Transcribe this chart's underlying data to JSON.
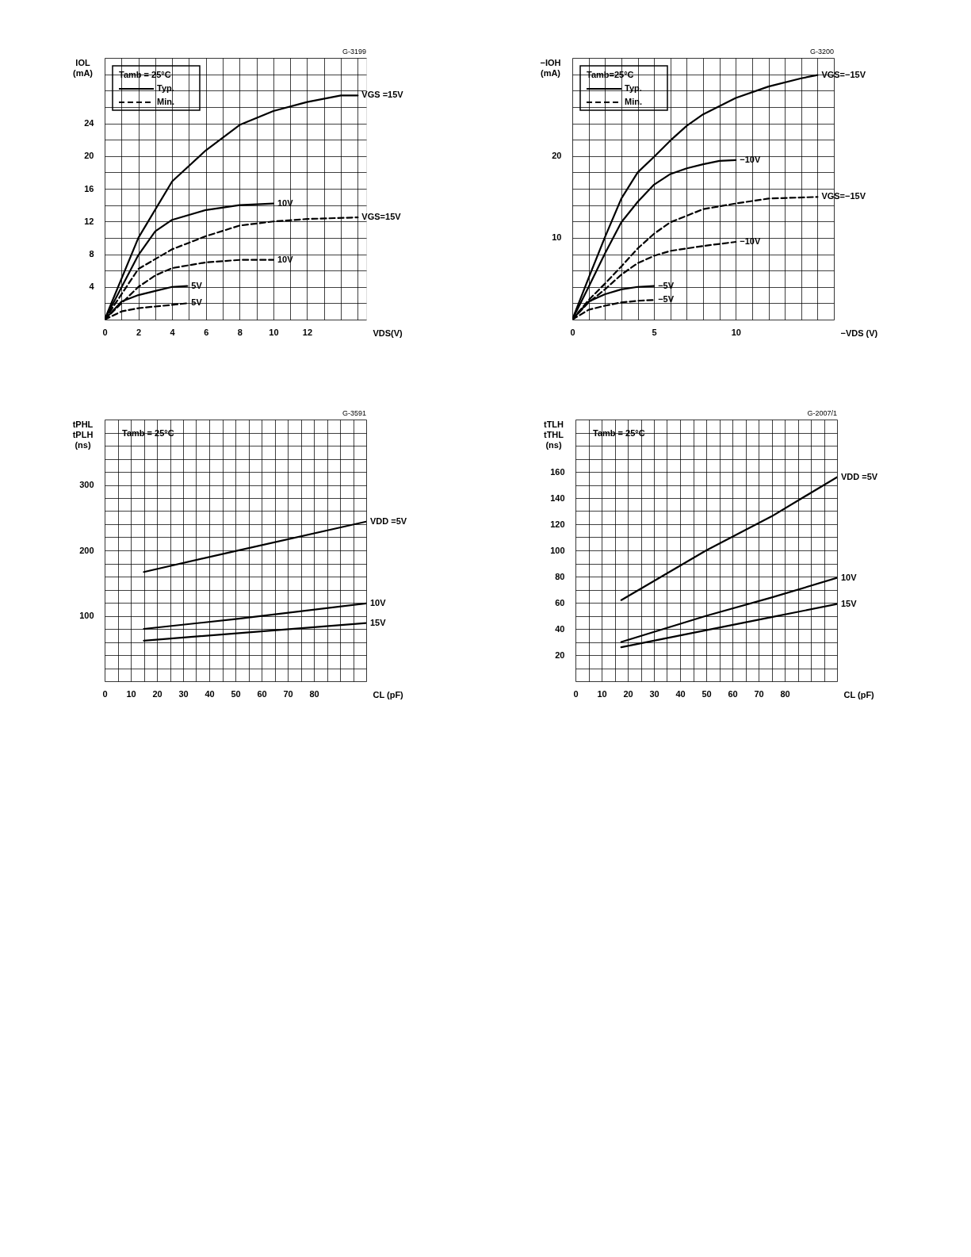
{
  "chart_data": [
    {
      "type": "line",
      "xlabel": "VDS(V)",
      "ylabel": "IOL\n(mA)",
      "legend_title": "Tamb = 25°C",
      "grid": true,
      "xlim": [
        0,
        15.5
      ],
      "ylim": [
        0,
        32
      ],
      "xticks": [
        0,
        {
          "value": 1,
          "label": null
        },
        2,
        {
          "value": 3,
          "label": null
        },
        4,
        {
          "value": 5,
          "label": null
        },
        6,
        {
          "value": 7,
          "label": null
        },
        8,
        {
          "value": 9,
          "label": null
        },
        10,
        {
          "value": 11,
          "label": null
        },
        12,
        {
          "value": 13,
          "label": null
        },
        {
          "value": 14,
          "label": null
        },
        {
          "value": 15,
          "label": null
        }
      ],
      "yticks": [
        {
          "value": 0,
          "label": null
        },
        {
          "value": 2,
          "label": null
        },
        4,
        {
          "value": 6,
          "label": null
        },
        8,
        {
          "value": 10,
          "label": null
        },
        12,
        {
          "value": 14,
          "label": null
        },
        16,
        {
          "value": 18,
          "label": null
        },
        20,
        {
          "value": 22,
          "label": null
        },
        24,
        {
          "value": 26,
          "label": null
        },
        {
          "value": 28,
          "label": null
        },
        {
          "value": 30,
          "label": null
        },
        {
          "value": 32,
          "label": null
        }
      ],
      "series": [
        {
          "name": "VGS =15V",
          "color": "#000000",
          "line_style": "solid",
          "x": [
            0,
            2,
            4,
            6,
            8,
            10,
            12,
            14,
            15
          ],
          "values": [
            0,
            10,
            16.9,
            20.7,
            23.8,
            25.5,
            26.6,
            27.4,
            27.4
          ]
        },
        {
          "name": "10V",
          "color": "#000000",
          "line_style": "solid",
          "x": [
            0,
            2,
            3,
            4,
            6,
            8,
            10
          ],
          "values": [
            0,
            7.9,
            10.8,
            12.2,
            13.4,
            14.0,
            14.2
          ]
        },
        {
          "name": "5V",
          "color": "#000000",
          "line_style": "solid",
          "x": [
            0,
            1,
            2,
            3,
            4,
            4.9
          ],
          "values": [
            0,
            2.2,
            3.0,
            3.5,
            4.0,
            4.1
          ]
        },
        {
          "name": "VGS=15V",
          "color": "#000000",
          "line_style": "dashed",
          "x": [
            0,
            2,
            4,
            6,
            8,
            10,
            12,
            15
          ],
          "values": [
            0,
            6.2,
            8.6,
            10.2,
            11.5,
            12.0,
            12.3,
            12.5
          ]
        },
        {
          "name": "10V",
          "color": "#000000",
          "line_style": "dashed",
          "x": [
            0,
            2,
            3,
            4,
            6,
            8,
            10
          ],
          "values": [
            0,
            4.0,
            5.4,
            6.3,
            7.0,
            7.3,
            7.3
          ]
        },
        {
          "name": "5V",
          "color": "#000000",
          "line_style": "dashed",
          "x": [
            0,
            1,
            2,
            3,
            4,
            4.9
          ],
          "values": [
            0,
            1.0,
            1.4,
            1.6,
            1.8,
            2.0
          ]
        }
      ],
      "annotations": [
        "G-3199",
        "Typ.",
        "Min."
      ]
    },
    {
      "type": "line",
      "xlabel": "−VDS (V)",
      "ylabel": "−IOH\n(mA)",
      "legend_title": "Tamb=25°C",
      "grid": true,
      "xlim": [
        0,
        16
      ],
      "ylim": [
        0,
        32
      ],
      "xticks": [
        0,
        {
          "value": 1,
          "label": null
        },
        {
          "value": 2,
          "label": null
        },
        {
          "value": 3,
          "label": null
        },
        {
          "value": 4,
          "label": null
        },
        5,
        {
          "value": 6,
          "label": null
        },
        {
          "value": 7,
          "label": null
        },
        {
          "value": 8,
          "label": null
        },
        {
          "value": 9,
          "label": null
        },
        10,
        {
          "value": 11,
          "label": null
        },
        {
          "value": 12,
          "label": null
        },
        {
          "value": 13,
          "label": null
        },
        {
          "value": 14,
          "label": null
        },
        {
          "value": 15,
          "label": null
        },
        {
          "value": 16,
          "label": null
        }
      ],
      "yticks": [
        {
          "value": 0,
          "label": null
        },
        {
          "value": 2,
          "label": null
        },
        {
          "value": 4,
          "label": null
        },
        {
          "value": 6,
          "label": null
        },
        {
          "value": 8,
          "label": null
        },
        10,
        {
          "value": 12,
          "label": null
        },
        {
          "value": 14,
          "label": null
        },
        {
          "value": 16,
          "label": null
        },
        {
          "value": 18,
          "label": null
        },
        20,
        {
          "value": 22,
          "label": null
        },
        {
          "value": 24,
          "label": null
        },
        {
          "value": 26,
          "label": null
        },
        {
          "value": 28,
          "label": null
        },
        {
          "value": 30,
          "label": null
        },
        {
          "value": 32,
          "label": null
        }
      ],
      "series": [
        {
          "name": "VGS=−15V",
          "color": "#000000",
          "line_style": "solid",
          "x": [
            0,
            1,
            2,
            3,
            4,
            5,
            6,
            7,
            8,
            10,
            12,
            14,
            15
          ],
          "values": [
            0,
            5.1,
            10.1,
            14.8,
            18.0,
            19.9,
            21.9,
            23.7,
            25.1,
            27.1,
            28.5,
            29.5,
            29.9
          ]
        },
        {
          "name": "−10V",
          "color": "#000000",
          "line_style": "solid",
          "x": [
            0,
            1,
            2,
            3,
            4,
            5,
            6,
            7,
            8,
            9,
            10
          ],
          "values": [
            0,
            4.0,
            8.1,
            11.9,
            14.4,
            16.5,
            17.8,
            18.5,
            19.0,
            19.4,
            19.5
          ]
        },
        {
          "name": "−5V",
          "color": "#000000",
          "line_style": "solid",
          "x": [
            0,
            1,
            2,
            3,
            4,
            5
          ],
          "values": [
            0,
            2.2,
            3.1,
            3.7,
            4.0,
            4.1
          ]
        },
        {
          "name": "VGS=−15V",
          "color": "#000000",
          "line_style": "dashed",
          "x": [
            0,
            1,
            2,
            3,
            4,
            5,
            6,
            8,
            10,
            12,
            15
          ],
          "values": [
            0,
            2.4,
            4.4,
            6.5,
            8.7,
            10.5,
            11.9,
            13.5,
            14.2,
            14.8,
            15.0
          ]
        },
        {
          "name": "−10V",
          "color": "#000000",
          "line_style": "dashed",
          "x": [
            0,
            1,
            2,
            3,
            4,
            5,
            6,
            8,
            10
          ],
          "values": [
            0,
            2.1,
            3.7,
            5.5,
            6.9,
            7.8,
            8.4,
            9.0,
            9.5
          ]
        },
        {
          "name": "−5V",
          "color": "#000000",
          "line_style": "dashed",
          "x": [
            0,
            1,
            2,
            3,
            4,
            5
          ],
          "values": [
            0,
            1.2,
            1.7,
            2.1,
            2.3,
            2.4
          ]
        }
      ],
      "annotations": [
        "G-3200",
        "Typ.",
        "Min."
      ]
    },
    {
      "type": "line",
      "xlabel": "CL (pF)",
      "ylabel": "tPHL\ntPLH\n(ns)",
      "grid": true,
      "xlim": [
        0,
        100
      ],
      "ylim": [
        0,
        400
      ],
      "xticks": [
        0,
        {
          "value": 5,
          "label": null
        },
        10,
        {
          "value": 15,
          "label": null
        },
        20,
        {
          "value": 25,
          "label": null
        },
        30,
        {
          "value": 35,
          "label": null
        },
        40,
        {
          "value": 45,
          "label": null
        },
        50,
        {
          "value": 55,
          "label": null
        },
        60,
        {
          "value": 65,
          "label": null
        },
        70,
        {
          "value": 75,
          "label": null
        },
        80,
        {
          "value": 85,
          "label": null
        },
        {
          "value": 90,
          "label": null
        },
        {
          "value": 95,
          "label": null
        },
        {
          "value": 100,
          "label": null
        }
      ],
      "yticks": [
        {
          "value": 0,
          "label": null
        },
        {
          "value": 20,
          "label": null
        },
        {
          "value": 40,
          "label": null
        },
        {
          "value": 60,
          "label": null
        },
        {
          "value": 80,
          "label": null
        },
        100,
        {
          "value": 120,
          "label": null
        },
        {
          "value": 140,
          "label": null
        },
        {
          "value": 160,
          "label": null
        },
        {
          "value": 180,
          "label": null
        },
        200,
        {
          "value": 220,
          "label": null
        },
        {
          "value": 240,
          "label": null
        },
        {
          "value": 260,
          "label": null
        },
        {
          "value": 280,
          "label": null
        },
        300,
        {
          "value": 320,
          "label": null
        },
        {
          "value": 340,
          "label": null
        },
        {
          "value": 360,
          "label": null
        },
        {
          "value": 380,
          "label": null
        },
        {
          "value": 400,
          "label": null
        }
      ],
      "series": [
        {
          "name": "VDD =5V",
          "color": "#000000",
          "line_style": "solid",
          "x": [
            15,
            50,
            100
          ],
          "values": [
            167,
            199,
            244
          ]
        },
        {
          "name": "10V",
          "color": "#000000",
          "line_style": "solid",
          "x": [
            15,
            50,
            100
          ],
          "values": [
            80,
            95,
            119
          ]
        },
        {
          "name": "15V",
          "color": "#000000",
          "line_style": "solid",
          "x": [
            15,
            100
          ],
          "values": [
            62,
            89
          ]
        }
      ],
      "annotations": [
        "G-3591",
        "Tamb = 25°C"
      ]
    },
    {
      "type": "line",
      "xlabel": "CL (pF)",
      "ylabel": "tTLH\ntTHL\n(ns)",
      "grid": true,
      "xlim": [
        0,
        100
      ],
      "ylim": [
        0,
        200
      ],
      "xticks": [
        0,
        {
          "value": 5,
          "label": null
        },
        10,
        {
          "value": 15,
          "label": null
        },
        20,
        {
          "value": 25,
          "label": null
        },
        30,
        {
          "value": 35,
          "label": null
        },
        40,
        {
          "value": 45,
          "label": null
        },
        50,
        {
          "value": 55,
          "label": null
        },
        60,
        {
          "value": 65,
          "label": null
        },
        70,
        {
          "value": 75,
          "label": null
        },
        80,
        {
          "value": 85,
          "label": null
        },
        {
          "value": 90,
          "label": null
        },
        {
          "value": 95,
          "label": null
        },
        {
          "value": 100,
          "label": null
        }
      ],
      "yticks": [
        {
          "value": 0,
          "label": null
        },
        {
          "value": 10,
          "label": null
        },
        20,
        {
          "value": 30,
          "label": null
        },
        40,
        {
          "value": 50,
          "label": null
        },
        60,
        {
          "value": 70,
          "label": null
        },
        80,
        {
          "value": 90,
          "label": null
        },
        100,
        {
          "value": 110,
          "label": null
        },
        120,
        {
          "value": 130,
          "label": null
        },
        140,
        {
          "value": 150,
          "label": null
        },
        160,
        {
          "value": 170,
          "label": null
        },
        {
          "value": 180,
          "label": null
        },
        {
          "value": 190,
          "label": null
        },
        {
          "value": 200,
          "label": null
        }
      ],
      "series": [
        {
          "name": "VDD =5V",
          "color": "#000000",
          "line_style": "solid",
          "x": [
            17.5,
            50,
            75,
            100
          ],
          "values": [
            62,
            100,
            126,
            156
          ]
        },
        {
          "name": "10V",
          "color": "#000000",
          "line_style": "solid",
          "x": [
            17.5,
            50,
            75,
            100
          ],
          "values": [
            30,
            50,
            64,
            79
          ]
        },
        {
          "name": "15V",
          "color": "#000000",
          "line_style": "solid",
          "x": [
            17.5,
            50,
            75,
            100
          ],
          "values": [
            26,
            39,
            49,
            59
          ]
        }
      ],
      "annotations": [
        "G-2007/1",
        "Tamb = 25°C"
      ]
    }
  ]
}
